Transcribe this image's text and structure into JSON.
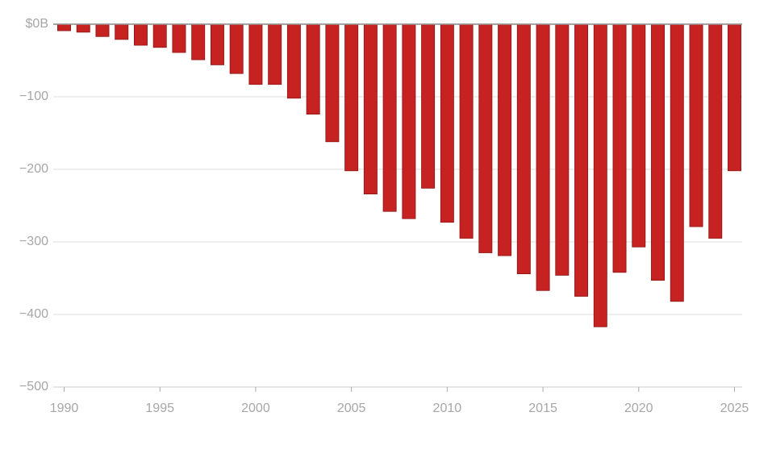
{
  "chart_data": {
    "type": "bar",
    "x": [
      1990,
      1991,
      1992,
      1993,
      1994,
      1995,
      1996,
      1997,
      1998,
      1999,
      2000,
      2001,
      2002,
      2003,
      2004,
      2005,
      2006,
      2007,
      2008,
      2009,
      2010,
      2011,
      2012,
      2013,
      2014,
      2015,
      2016,
      2017,
      2018,
      2019,
      2020,
      2021,
      2022,
      2023,
      2024,
      2025
    ],
    "values": [
      -9,
      -11,
      -17,
      -21,
      -29,
      -32,
      -39,
      -49,
      -56,
      -68,
      -83,
      -83,
      -102,
      -124,
      -162,
      -202,
      -234,
      -258,
      -268,
      -226,
      -273,
      -295,
      -315,
      -319,
      -344,
      -367,
      -346,
      -375,
      -417,
      -342,
      -307,
      -353,
      -382,
      -279,
      -295,
      -202
    ],
    "color": "#c62222",
    "xlim": [
      1989.6,
      2025.4
    ],
    "xticks": [
      1990,
      1995,
      2000,
      2005,
      2010,
      2015,
      2020,
      2025
    ],
    "ylim": [
      -500,
      0
    ],
    "yticks": [
      {
        "value": 0,
        "label": "$0B"
      },
      {
        "value": -100,
        "label": "−100"
      },
      {
        "value": -200,
        "label": "−200"
      },
      {
        "value": -300,
        "label": "−300"
      },
      {
        "value": -400,
        "label": "−400"
      },
      {
        "value": -500,
        "label": "−500"
      }
    ],
    "grid": true
  }
}
